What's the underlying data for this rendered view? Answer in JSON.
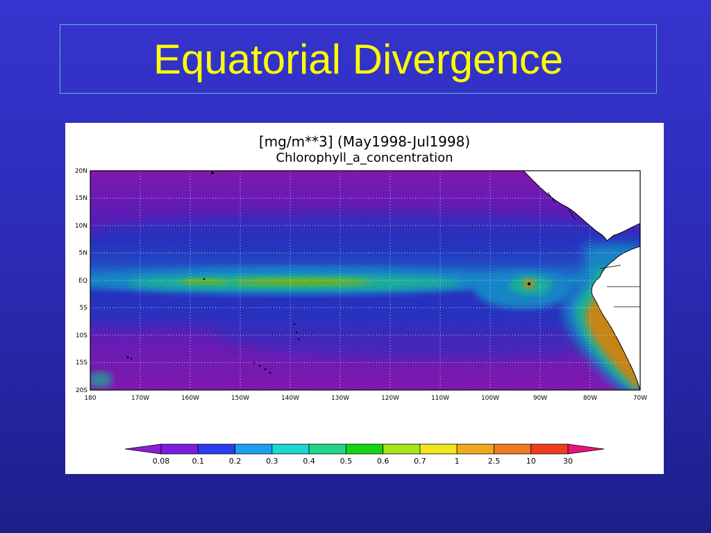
{
  "slide": {
    "title": "Equatorial Divergence"
  },
  "map": {
    "header_line1": "[mg/m**3]  (May1998-Jul1998)",
    "header_line2": "Chlorophyll_a_concentration",
    "lat_ticks": [
      "20N",
      "15N",
      "10N",
      "5N",
      "EQ",
      "5S",
      "10S",
      "15S",
      "20S"
    ],
    "lon_ticks": [
      "180",
      "170W",
      "160W",
      "150W",
      "140W",
      "130W",
      "120W",
      "110W",
      "100W",
      "90W",
      "80W",
      "70W"
    ],
    "lat_range": [
      -20,
      20
    ],
    "lon_range": [
      -180,
      -70
    ],
    "colorbar": {
      "labels": [
        "0.08",
        "0.1",
        "0.2",
        "0.3",
        "0.4",
        "0.5",
        "0.6",
        "0.7",
        "1",
        "2.5",
        "10",
        "30"
      ],
      "colors": [
        "#8c1fd6",
        "#7b1ee0",
        "#2a3cf0",
        "#1f9ff0",
        "#1ed6d2",
        "#22d68c",
        "#14d414",
        "#a6e41e",
        "#f0e61e",
        "#f0a91e",
        "#f07a1e",
        "#f03c1e",
        "#e8147a"
      ]
    },
    "colors": {
      "low": "#9a1ed2",
      "mid_low": "#2f3ce6",
      "mid": "#1ea0f0",
      "band": "#22d6b4",
      "peak": "#8cd61e",
      "high": "#f0a01e",
      "land": "#ffffff"
    }
  }
}
